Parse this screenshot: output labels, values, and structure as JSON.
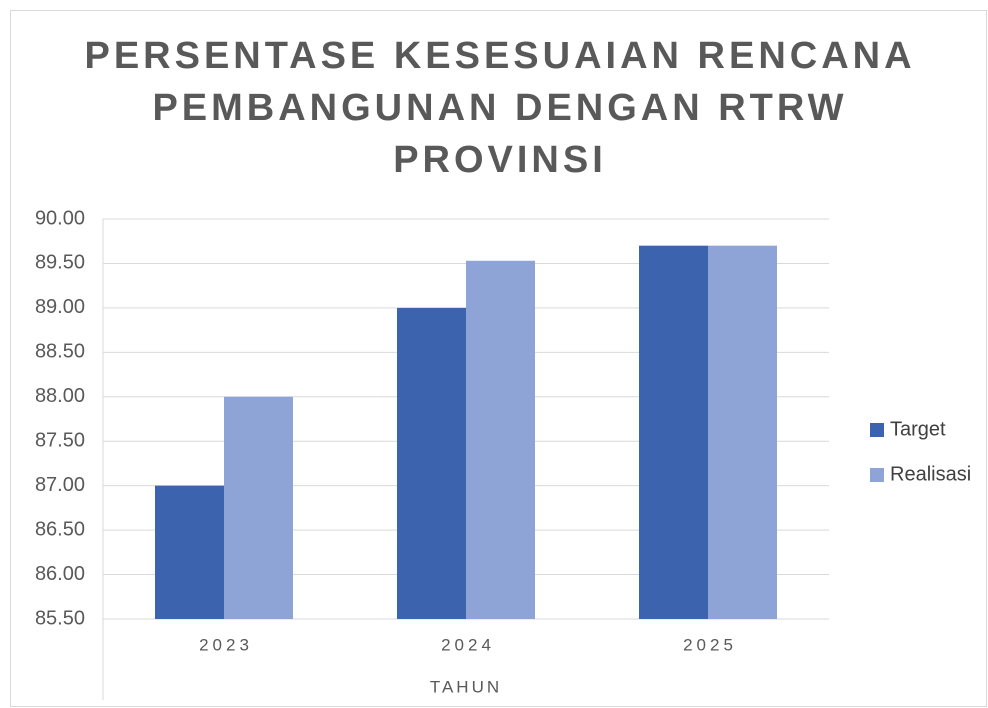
{
  "chart_data": {
    "type": "bar",
    "title": [
      "PERSENTASE KESESUAIAN RENCANA",
      "PEMBANGUNAN DENGAN RTRW",
      "PROVINSI"
    ],
    "x_label": "TAHUN",
    "categories": [
      "2023",
      "2024",
      "2025"
    ],
    "series": [
      {
        "name": "Target",
        "color": "#3c63ad",
        "values": [
          87,
          89,
          89.7
        ]
      },
      {
        "name": "Realisasi",
        "color": "#8fa4d6",
        "values": [
          88,
          89.53,
          89.7
        ]
      }
    ],
    "ylim": [
      85.5,
      90
    ],
    "yticks": [
      {
        "value": 85.5,
        "label": "85.50"
      },
      {
        "value": 86,
        "label": "86.00"
      },
      {
        "value": 86.5,
        "label": "86.50"
      },
      {
        "value": 87,
        "label": "87.00"
      },
      {
        "value": 87.5,
        "label": "87.50"
      },
      {
        "value": 88,
        "label": "88.00"
      },
      {
        "value": 88.5,
        "label": "88.50"
      },
      {
        "value": 89,
        "label": "89.00"
      },
      {
        "value": 89.5,
        "label": "89.50"
      },
      {
        "value": 90,
        "label": "90.00"
      }
    ],
    "grid": true,
    "legend": "right"
  }
}
